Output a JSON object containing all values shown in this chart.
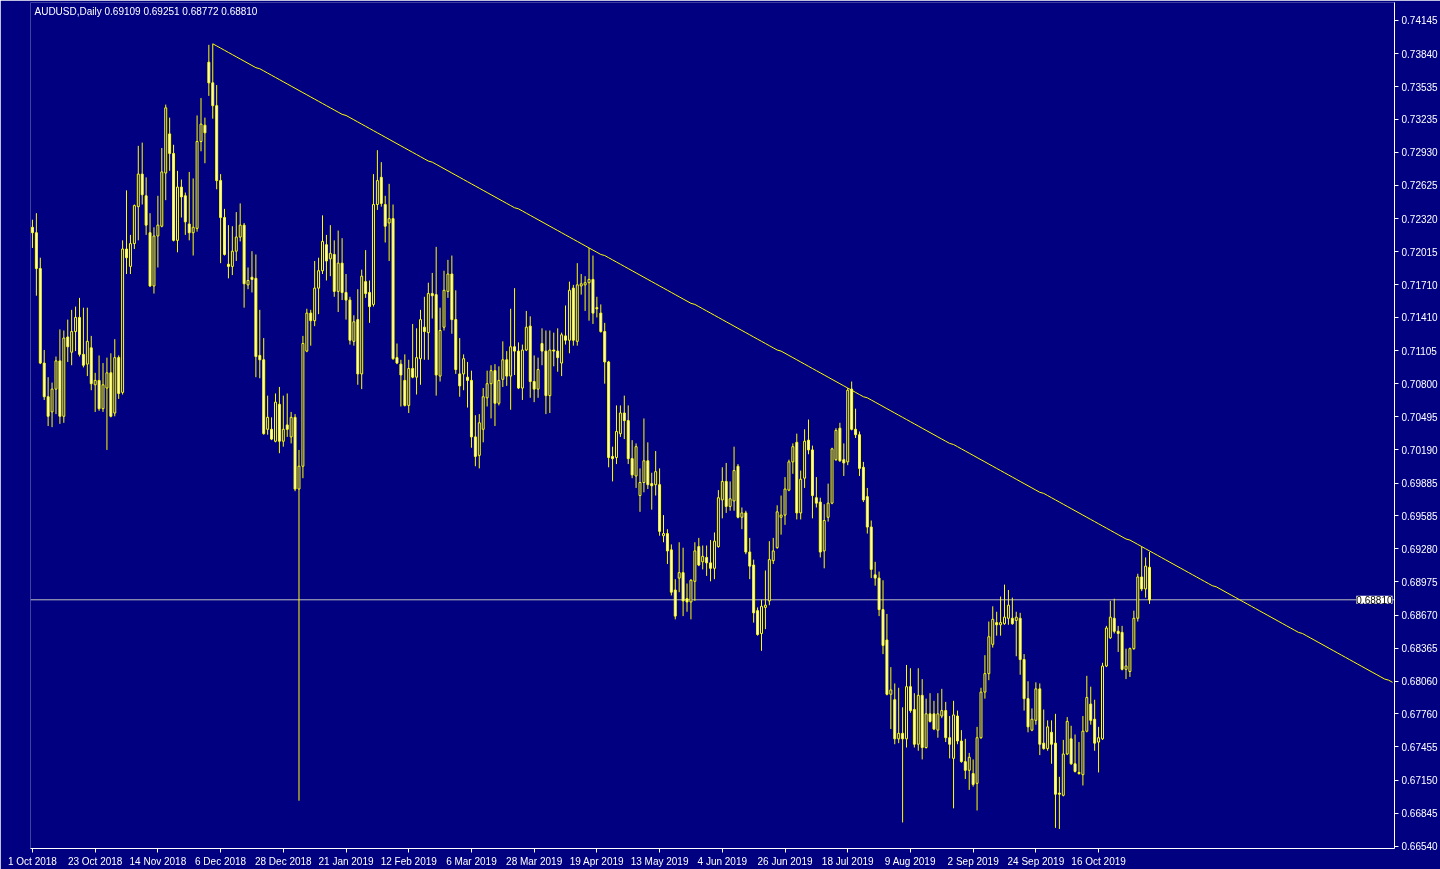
{
  "chart_data": {
    "type": "candlestick",
    "title": "AUDUSD,Daily 0.69109 0.69251 0.68772 0.68810",
    "color": "#ffff00",
    "categories": [
      "1 Oct 2018",
      null,
      null,
      null,
      null,
      null,
      null,
      null,
      null,
      null,
      null,
      null,
      null,
      null,
      null,
      null,
      "23 Oct 2018",
      null,
      null,
      null,
      null,
      null,
      null,
      null,
      null,
      null,
      null,
      null,
      null,
      null,
      null,
      null,
      "14 Nov 2018",
      null,
      null,
      null,
      null,
      null,
      null,
      null,
      null,
      null,
      null,
      null,
      null,
      null,
      null,
      null,
      "6 Dec 2018",
      null,
      null,
      null,
      null,
      null,
      null,
      null,
      null,
      null,
      null,
      null,
      null,
      null,
      null,
      null,
      "28 Dec 2018",
      null,
      null,
      null,
      null,
      null,
      null,
      null,
      null,
      null,
      null,
      null,
      null,
      null,
      null,
      null,
      "21 Jan 2019",
      null,
      null,
      null,
      null,
      null,
      null,
      null,
      null,
      null,
      null,
      null,
      null,
      null,
      null,
      null,
      "12 Feb 2019",
      null,
      null,
      null,
      null,
      null,
      null,
      null,
      null,
      null,
      null,
      null,
      null,
      null,
      null,
      null,
      "6 Mar 2019",
      null,
      null,
      null,
      null,
      null,
      null,
      null,
      null,
      null,
      null,
      null,
      null,
      null,
      null,
      null,
      "28 Mar 2019",
      null,
      null,
      null,
      null,
      null,
      null,
      null,
      null,
      null,
      null,
      null,
      null,
      null,
      null,
      null,
      "19 Apr 2019",
      null,
      null,
      null,
      null,
      null,
      null,
      null,
      null,
      null,
      null,
      null,
      null,
      null,
      null,
      null,
      "13 May 2019",
      null,
      null,
      null,
      null,
      null,
      null,
      null,
      null,
      null,
      null,
      null,
      null,
      null,
      null,
      null,
      "4 Jun 2019",
      null,
      null,
      null,
      null,
      null,
      null,
      null,
      null,
      null,
      null,
      null,
      null,
      null,
      null,
      null,
      "26 Jun 2019",
      null,
      null,
      null,
      null,
      null,
      null,
      null,
      null,
      null,
      null,
      null,
      null,
      null,
      null,
      null,
      "18 Jul 2019",
      null,
      null,
      null,
      null,
      null,
      null,
      null,
      null,
      null,
      null,
      null,
      null,
      null,
      null,
      null,
      "9 Aug 2019",
      null,
      null,
      null,
      null,
      null,
      null,
      null,
      null,
      null,
      null,
      null,
      null,
      null,
      null,
      null,
      "2 Sep 2019",
      null,
      null,
      null,
      null,
      null,
      null,
      null,
      null,
      null,
      null,
      null,
      null,
      null,
      null,
      null,
      "24 Sep 2019",
      null,
      null,
      null,
      null,
      null,
      null,
      null,
      null,
      null,
      null,
      null,
      null,
      null,
      null,
      null,
      "16 Oct 2019",
      null,
      null,
      null,
      null,
      null,
      null,
      null,
      null,
      null,
      null,
      null,
      null,
      null,
      null,
      null,
      null,
      null,
      null,
      null,
      null,
      null,
      null,
      null,
      null,
      null,
      null,
      null,
      null,
      null,
      null,
      null,
      null,
      null,
      null,
      null,
      null,
      null,
      null,
      null,
      null,
      null,
      null,
      null,
      null,
      null,
      null,
      null,
      null,
      null,
      null,
      null,
      null,
      null,
      null,
      null,
      null,
      null,
      null,
      null,
      null,
      null,
      null,
      null,
      null,
      null,
      null,
      null,
      null,
      null,
      null,
      null,
      null,
      null,
      null,
      null
    ],
    "ohlc": [
      [
        0.7224,
        0.7231,
        0.7205,
        0.7219
      ],
      [
        0.7219,
        0.7237,
        0.7161,
        0.7186
      ],
      [
        0.7186,
        0.7196,
        0.7098,
        0.7099
      ],
      [
        0.7099,
        0.7111,
        0.7065,
        0.7068
      ],
      [
        0.7068,
        0.7086,
        0.7041,
        0.705
      ],
      [
        0.7054,
        0.7081,
        0.704,
        0.7075
      ],
      [
        0.7075,
        0.7105,
        0.7052,
        0.7101
      ],
      [
        0.7101,
        0.713,
        0.7043,
        0.705
      ],
      [
        0.705,
        0.7129,
        0.7044,
        0.7122
      ],
      [
        0.7123,
        0.7139,
        0.71,
        0.7114
      ],
      [
        0.7109,
        0.7148,
        0.7097,
        0.7128
      ],
      [
        0.7128,
        0.7151,
        0.711,
        0.7141
      ],
      [
        0.7141,
        0.7159,
        0.7105,
        0.7107
      ],
      [
        0.7107,
        0.715,
        0.7095,
        0.7097
      ],
      [
        0.7098,
        0.715,
        0.7087,
        0.7119
      ],
      [
        0.7113,
        0.7124,
        0.7074,
        0.708
      ],
      [
        0.7079,
        0.709,
        0.7054,
        0.7083
      ],
      [
        0.7083,
        0.7106,
        0.7055,
        0.7057
      ],
      [
        0.7057,
        0.7099,
        0.7054,
        0.7079
      ],
      [
        0.7076,
        0.7104,
        0.7019,
        0.709
      ],
      [
        0.709,
        0.7108,
        0.7049,
        0.705
      ],
      [
        0.7053,
        0.7121,
        0.705,
        0.7104
      ],
      [
        0.7104,
        0.7106,
        0.7066,
        0.7071
      ],
      [
        0.7072,
        0.7212,
        0.707,
        0.7204
      ],
      [
        0.7204,
        0.7258,
        0.7181,
        0.7196
      ],
      [
        0.7188,
        0.7217,
        0.7181,
        0.7209
      ],
      [
        0.7209,
        0.7245,
        0.7204,
        0.7244
      ],
      [
        0.7243,
        0.7299,
        0.7212,
        0.7273
      ],
      [
        0.7273,
        0.7302,
        0.7245,
        0.7254
      ],
      [
        0.7253,
        0.727,
        0.7217,
        0.7226
      ],
      [
        0.7219,
        0.7237,
        0.7169,
        0.717
      ],
      [
        0.717,
        0.7224,
        0.7163,
        0.7216
      ],
      [
        0.7216,
        0.7253,
        0.7187,
        0.7226
      ],
      [
        0.7225,
        0.7297,
        0.7224,
        0.7275
      ],
      [
        0.7274,
        0.7337,
        0.7249,
        0.7334
      ],
      [
        0.731,
        0.7325,
        0.7276,
        0.7292
      ],
      [
        0.7292,
        0.73,
        0.7211,
        0.7212
      ],
      [
        0.7212,
        0.7276,
        0.7201,
        0.7261
      ],
      [
        0.7261,
        0.7268,
        0.7233,
        0.7252
      ],
      [
        0.7253,
        0.7256,
        0.7217,
        0.7229
      ],
      [
        0.7227,
        0.7275,
        0.7212,
        0.7219
      ],
      [
        0.7219,
        0.7269,
        0.7198,
        0.7224
      ],
      [
        0.7223,
        0.7327,
        0.722,
        0.7303
      ],
      [
        0.7303,
        0.7343,
        0.7294,
        0.7319
      ],
      [
        0.7318,
        0.7325,
        0.7283,
        0.7311
      ],
      [
        0.7376,
        0.7392,
        0.7345,
        0.7357
      ],
      [
        0.7357,
        0.7393,
        0.7324,
        0.7336
      ],
      [
        0.7336,
        0.7355,
        0.7259,
        0.7267
      ],
      [
        0.7267,
        0.7273,
        0.7191,
        0.7233
      ],
      [
        0.7233,
        0.7241,
        0.7198,
        0.7199
      ],
      [
        0.719,
        0.7226,
        0.7177,
        0.7188
      ],
      [
        0.7188,
        0.7225,
        0.718,
        0.7202
      ],
      [
        0.7202,
        0.7238,
        0.7193,
        0.7215
      ],
      [
        0.7215,
        0.7246,
        0.7211,
        0.7226
      ],
      [
        0.7226,
        0.7228,
        0.715,
        0.7172
      ],
      [
        0.7171,
        0.7187,
        0.7167,
        0.7175
      ],
      [
        0.7178,
        0.7202,
        0.7164,
        0.7176
      ],
      [
        0.7177,
        0.7199,
        0.7086,
        0.7105
      ],
      [
        0.7106,
        0.7148,
        0.7085,
        0.7102
      ],
      [
        0.7102,
        0.7122,
        0.7033,
        0.7034
      ],
      [
        0.7038,
        0.7069,
        0.7033,
        0.7049
      ],
      [
        0.7038,
        0.7049,
        0.7028,
        0.7029
      ],
      [
        0.7027,
        0.7071,
        0.7026,
        0.7063
      ],
      [
        0.7061,
        0.7077,
        0.7016,
        0.7027
      ],
      [
        0.7027,
        0.7069,
        0.7022,
        0.7038
      ],
      [
        0.7042,
        0.7071,
        0.7031,
        0.7038
      ],
      [
        0.7031,
        0.7054,
        0.7025,
        0.7049
      ],
      [
        0.7049,
        0.7052,
        0.6981,
        0.6983
      ],
      [
        0.6983,
        0.7019,
        0.6696,
        0.7004
      ],
      [
        0.7004,
        0.7124,
        0.6993,
        0.7117
      ],
      [
        0.711,
        0.7149,
        0.7109,
        0.7145
      ],
      [
        0.7145,
        0.7148,
        0.7115,
        0.7138
      ],
      [
        0.7138,
        0.7193,
        0.7133,
        0.7168
      ],
      [
        0.7168,
        0.7196,
        0.7144,
        0.7184
      ],
      [
        0.7184,
        0.7235,
        0.7181,
        0.7211
      ],
      [
        0.7208,
        0.7217,
        0.7175,
        0.7193
      ],
      [
        0.7195,
        0.7226,
        0.7179,
        0.72
      ],
      [
        0.7199,
        0.7212,
        0.716,
        0.7165
      ],
      [
        0.7165,
        0.7221,
        0.7146,
        0.7191
      ],
      [
        0.7191,
        0.7214,
        0.7157,
        0.7164
      ],
      [
        0.7164,
        0.7181,
        0.7139,
        0.7157
      ],
      [
        0.7157,
        0.716,
        0.7116,
        0.712
      ],
      [
        0.7119,
        0.7143,
        0.7115,
        0.7137
      ],
      [
        0.7139,
        0.7167,
        0.7079,
        0.7089
      ],
      [
        0.7089,
        0.7185,
        0.7075,
        0.7179
      ],
      [
        0.7174,
        0.7203,
        0.7159,
        0.7163
      ],
      [
        0.7164,
        0.7175,
        0.7136,
        0.7151
      ],
      [
        0.7153,
        0.7273,
        0.7151,
        0.7245
      ],
      [
        0.7245,
        0.7295,
        0.724,
        0.7267
      ],
      [
        0.727,
        0.7284,
        0.7243,
        0.7246
      ],
      [
        0.7245,
        0.7253,
        0.721,
        0.7225
      ],
      [
        0.7228,
        0.7264,
        0.7193,
        0.7232
      ],
      [
        0.7232,
        0.7245,
        0.7102,
        0.7103
      ],
      [
        0.7104,
        0.7117,
        0.7098,
        0.7099
      ],
      [
        0.7098,
        0.7102,
        0.7059,
        0.7088
      ],
      [
        0.7083,
        0.7107,
        0.7059,
        0.706
      ],
      [
        0.706,
        0.7102,
        0.7053,
        0.7094
      ],
      [
        0.7094,
        0.7135,
        0.7085,
        0.7086
      ],
      [
        0.7086,
        0.7131,
        0.707,
        0.7104
      ],
      [
        0.7103,
        0.7148,
        0.7079,
        0.7139
      ],
      [
        0.7132,
        0.716,
        0.7102,
        0.7128
      ],
      [
        0.7127,
        0.7173,
        0.7102,
        0.7163
      ],
      [
        0.7163,
        0.7182,
        0.714,
        0.7161
      ],
      [
        0.7162,
        0.7206,
        0.7069,
        0.7088
      ],
      [
        0.7087,
        0.715,
        0.7082,
        0.7129
      ],
      [
        0.7132,
        0.7184,
        0.7129,
        0.7166
      ],
      [
        0.7165,
        0.7194,
        0.7159,
        0.7181
      ],
      [
        0.7181,
        0.7198,
        0.7126,
        0.7139
      ],
      [
        0.7139,
        0.7166,
        0.7089,
        0.7093
      ],
      [
        0.7089,
        0.7122,
        0.7068,
        0.7078
      ],
      [
        0.7089,
        0.7107,
        0.7074,
        0.7103
      ],
      [
        0.7086,
        0.71,
        0.7058,
        0.7083
      ],
      [
        0.7083,
        0.7092,
        0.7021,
        0.7031
      ],
      [
        0.7031,
        0.7051,
        0.7004,
        0.7013
      ],
      [
        0.7014,
        0.7052,
        0.7002,
        0.7044
      ],
      [
        0.7038,
        0.7076,
        0.7026,
        0.7068
      ],
      [
        0.7067,
        0.7092,
        0.7059,
        0.708
      ],
      [
        0.708,
        0.7097,
        0.7048,
        0.7092
      ],
      [
        0.7092,
        0.7098,
        0.7041,
        0.7062
      ],
      [
        0.7062,
        0.7096,
        0.706,
        0.7083
      ],
      [
        0.7084,
        0.7119,
        0.7077,
        0.7102
      ],
      [
        0.7102,
        0.711,
        0.7078,
        0.7087
      ],
      [
        0.7087,
        0.7149,
        0.7056,
        0.7114
      ],
      [
        0.7114,
        0.7168,
        0.7088,
        0.711
      ],
      [
        0.711,
        0.7118,
        0.7075,
        0.7076
      ],
      [
        0.7076,
        0.7116,
        0.7065,
        0.7111
      ],
      [
        0.7111,
        0.7147,
        0.711,
        0.7132
      ],
      [
        0.7133,
        0.7142,
        0.7067,
        0.7082
      ],
      [
        0.7082,
        0.7106,
        0.7063,
        0.7075
      ],
      [
        0.7075,
        0.7104,
        0.7067,
        0.7093
      ],
      [
        0.7117,
        0.7131,
        0.7097,
        0.711
      ],
      [
        0.711,
        0.7129,
        0.7052,
        0.7069
      ],
      [
        0.7069,
        0.7129,
        0.7053,
        0.7111
      ],
      [
        0.7111,
        0.7127,
        0.7096,
        0.711
      ],
      [
        0.711,
        0.7131,
        0.7091,
        0.7104
      ],
      [
        0.7099,
        0.7127,
        0.7087,
        0.7125
      ],
      [
        0.7124,
        0.7152,
        0.7116,
        0.712
      ],
      [
        0.712,
        0.7174,
        0.7108,
        0.7166
      ],
      [
        0.7168,
        0.7171,
        0.7115,
        0.712
      ],
      [
        0.7119,
        0.7191,
        0.7115,
        0.7171
      ],
      [
        0.717,
        0.7181,
        0.7162,
        0.7172
      ],
      [
        0.7171,
        0.7179,
        0.7147,
        0.7173
      ],
      [
        0.7173,
        0.7205,
        0.7138,
        0.7176
      ],
      [
        0.7176,
        0.7198,
        0.7135,
        0.7145
      ],
      [
        0.715,
        0.716,
        0.7141,
        0.7149
      ],
      [
        0.7145,
        0.7153,
        0.7127,
        0.7128
      ],
      [
        0.7128,
        0.7136,
        0.708,
        0.71
      ],
      [
        0.71,
        0.7101,
        0.7003,
        0.7012
      ],
      [
        0.7013,
        0.7022,
        0.699,
        0.7011
      ],
      [
        0.7012,
        0.706,
        0.7006,
        0.7036
      ],
      [
        0.7034,
        0.706,
        0.7031,
        0.7053
      ],
      [
        0.7053,
        0.7069,
        0.7029,
        0.7046
      ],
      [
        0.7046,
        0.706,
        0.7006,
        0.7011
      ],
      [
        0.7011,
        0.7028,
        0.6993,
        0.6996
      ],
      [
        0.6995,
        0.7025,
        0.6984,
        0.7022
      ],
      [
        0.6977,
        0.7002,
        0.6962,
        0.6989
      ],
      [
        0.6989,
        0.7048,
        0.698,
        0.7009
      ],
      [
        0.7009,
        0.7026,
        0.6983,
        0.6987
      ],
      [
        0.6988,
        0.6998,
        0.6964,
        0.6986
      ],
      [
        0.6987,
        0.7018,
        0.6977,
        0.6999
      ],
      [
        0.6987,
        0.7002,
        0.694,
        0.6944
      ],
      [
        0.694,
        0.6959,
        0.6934,
        0.6942
      ],
      [
        0.6942,
        0.6946,
        0.6914,
        0.6926
      ],
      [
        0.6927,
        0.6932,
        0.6885,
        0.6888
      ],
      [
        0.689,
        0.69,
        0.6863,
        0.6866
      ],
      [
        0.6901,
        0.6934,
        0.6888,
        0.6906
      ],
      [
        0.6906,
        0.6929,
        0.6866,
        0.688
      ],
      [
        0.6882,
        0.6896,
        0.687,
        0.6879
      ],
      [
        0.6879,
        0.69,
        0.6863,
        0.6899
      ],
      [
        0.6898,
        0.6934,
        0.688,
        0.6926
      ],
      [
        0.693,
        0.6938,
        0.6912,
        0.6913
      ],
      [
        0.6916,
        0.6931,
        0.6909,
        0.6921
      ],
      [
        0.692,
        0.6931,
        0.6903,
        0.6915
      ],
      [
        0.6915,
        0.6936,
        0.6898,
        0.691
      ],
      [
        0.691,
        0.6943,
        0.69,
        0.6935
      ],
      [
        0.693,
        0.6982,
        0.6929,
        0.6975
      ],
      [
        0.6973,
        0.7003,
        0.6956,
        0.699
      ],
      [
        0.699,
        0.7007,
        0.6961,
        0.6967
      ],
      [
        0.6967,
        0.699,
        0.6963,
        0.6974
      ],
      [
        0.6972,
        0.7022,
        0.6963,
        0.7
      ],
      [
        0.7004,
        0.7006,
        0.6956,
        0.6957
      ],
      [
        0.6957,
        0.6966,
        0.6946,
        0.6961
      ],
      [
        0.6961,
        0.6963,
        0.6923,
        0.6925
      ],
      [
        0.6925,
        0.6938,
        0.69,
        0.6912
      ],
      [
        0.6913,
        0.6918,
        0.686,
        0.6869
      ],
      [
        0.6871,
        0.6874,
        0.6848,
        0.6849
      ],
      [
        0.685,
        0.6881,
        0.6834,
        0.6875
      ],
      [
        0.6874,
        0.6908,
        0.6854,
        0.6876
      ],
      [
        0.688,
        0.6935,
        0.6876,
        0.6918
      ],
      [
        0.6917,
        0.6938,
        0.6914,
        0.6926
      ],
      [
        0.6929,
        0.6968,
        0.6928,
        0.6962
      ],
      [
        0.6957,
        0.6977,
        0.6941,
        0.6959
      ],
      [
        0.6959,
        0.6994,
        0.695,
        0.6983
      ],
      [
        0.6982,
        0.701,
        0.6981,
        0.7008
      ],
      [
        0.7008,
        0.7025,
        0.6997,
        0.7022
      ],
      [
        0.7026,
        0.7034,
        0.6955,
        0.6961
      ],
      [
        0.6961,
        0.7,
        0.6955,
        0.6992
      ],
      [
        0.6993,
        0.7038,
        0.6984,
        0.7027
      ],
      [
        0.7028,
        0.7047,
        0.7015,
        0.7019
      ],
      [
        0.7019,
        0.7023,
        0.6956,
        0.6977
      ],
      [
        0.6975,
        0.6994,
        0.6966,
        0.697
      ],
      [
        0.6971,
        0.6975,
        0.692,
        0.6925
      ],
      [
        0.6926,
        0.6969,
        0.691,
        0.6954
      ],
      [
        0.6957,
        0.6988,
        0.6953,
        0.697
      ],
      [
        0.697,
        0.7021,
        0.6969,
        0.702
      ],
      [
        0.701,
        0.7039,
        0.7009,
        0.7037
      ],
      [
        0.7039,
        0.7044,
        0.7008,
        0.7009
      ],
      [
        0.701,
        0.7025,
        0.6995,
        0.7007
      ],
      [
        0.7008,
        0.7076,
        0.7005,
        0.7074
      ],
      [
        0.7075,
        0.7082,
        0.7037,
        0.7038
      ],
      [
        0.7038,
        0.7057,
        0.703,
        0.7033
      ],
      [
        0.7033,
        0.7036,
        0.6995,
        0.7002
      ],
      [
        0.7003,
        0.7008,
        0.6971,
        0.6973
      ],
      [
        0.6976,
        0.6984,
        0.6942,
        0.6948
      ],
      [
        0.6948,
        0.6954,
        0.6901,
        0.6909
      ],
      [
        0.6904,
        0.6916,
        0.6894,
        0.6901
      ],
      [
        0.6901,
        0.6907,
        0.6866,
        0.6872
      ],
      [
        0.6872,
        0.6899,
        0.6831,
        0.6839
      ],
      [
        0.6844,
        0.6868,
        0.6793,
        0.6794
      ],
      [
        0.6794,
        0.6819,
        0.6762,
        0.6798
      ],
      [
        0.6789,
        0.6804,
        0.6748,
        0.6753
      ],
      [
        0.6753,
        0.68,
        0.6749,
        0.6758
      ],
      [
        0.6758,
        0.6782,
        0.6676,
        0.6753
      ],
      [
        0.6753,
        0.6821,
        0.6745,
        0.6801
      ],
      [
        0.6801,
        0.6818,
        0.6777,
        0.6779
      ],
      [
        0.678,
        0.6795,
        0.6745,
        0.6748
      ],
      [
        0.6748,
        0.6818,
        0.6742,
        0.6793
      ],
      [
        0.6793,
        0.6808,
        0.6734,
        0.6745
      ],
      [
        0.6745,
        0.679,
        0.6744,
        0.6776
      ],
      [
        0.6776,
        0.6795,
        0.6768,
        0.6769
      ],
      [
        0.6776,
        0.6788,
        0.6761,
        0.6762
      ],
      [
        0.6761,
        0.6795,
        0.6754,
        0.6776
      ],
      [
        0.6774,
        0.6799,
        0.6772,
        0.6779
      ],
      [
        0.6779,
        0.6787,
        0.675,
        0.6754
      ],
      [
        0.6754,
        0.6774,
        0.6735,
        0.6748
      ],
      [
        0.6735,
        0.6788,
        0.6689,
        0.6775
      ],
      [
        0.6774,
        0.6779,
        0.6748,
        0.6751
      ],
      [
        0.6751,
        0.6761,
        0.6731,
        0.6732
      ],
      [
        0.6732,
        0.6753,
        0.6716,
        0.6724
      ],
      [
        0.6724,
        0.674,
        0.6706,
        0.6736
      ],
      [
        0.6721,
        0.6734,
        0.6709,
        0.6711
      ],
      [
        0.6712,
        0.6764,
        0.6687,
        0.6754
      ],
      [
        0.6754,
        0.68,
        0.6753,
        0.6796
      ],
      [
        0.6796,
        0.683,
        0.679,
        0.6813
      ],
      [
        0.6813,
        0.6861,
        0.6807,
        0.6847
      ],
      [
        0.684,
        0.6875,
        0.6837,
        0.6863
      ],
      [
        0.686,
        0.687,
        0.6848,
        0.6858
      ],
      [
        0.6858,
        0.6884,
        0.6848,
        0.686
      ],
      [
        0.6859,
        0.6895,
        0.6858,
        0.6865
      ],
      [
        0.6864,
        0.689,
        0.6858,
        0.6876
      ],
      [
        0.6864,
        0.6883,
        0.6858,
        0.6859
      ],
      [
        0.6862,
        0.687,
        0.6829,
        0.6865
      ],
      [
        0.6864,
        0.6869,
        0.6812,
        0.6826
      ],
      [
        0.6826,
        0.6831,
        0.6779,
        0.679
      ],
      [
        0.679,
        0.6806,
        0.6759,
        0.6764
      ],
      [
        0.6761,
        0.6781,
        0.676,
        0.6771
      ],
      [
        0.677,
        0.6805,
        0.6766,
        0.6799
      ],
      [
        0.6799,
        0.6804,
        0.6738,
        0.6748
      ],
      [
        0.6749,
        0.678,
        0.6743,
        0.6744
      ],
      [
        0.6744,
        0.677,
        0.6742,
        0.6764
      ],
      [
        0.6759,
        0.677,
        0.673,
        0.6748
      ],
      [
        0.6749,
        0.6776,
        0.6671,
        0.6702
      ],
      [
        0.6703,
        0.6718,
        0.667,
        0.6702
      ],
      [
        0.6701,
        0.6752,
        0.67,
        0.6739
      ],
      [
        0.6739,
        0.6773,
        0.6738,
        0.6769
      ],
      [
        0.6753,
        0.6765,
        0.6729,
        0.673
      ],
      [
        0.673,
        0.6757,
        0.6722,
        0.6723
      ],
      [
        0.6722,
        0.675,
        0.672,
        0.6721
      ],
      [
        0.672,
        0.6774,
        0.671,
        0.676
      ],
      [
        0.676,
        0.6811,
        0.6759,
        0.6791
      ],
      [
        0.6785,
        0.6801,
        0.6766,
        0.677
      ],
      [
        0.6771,
        0.6789,
        0.6742,
        0.6749
      ],
      [
        0.675,
        0.6764,
        0.6722,
        0.6754
      ],
      [
        0.6753,
        0.6823,
        0.6752,
        0.682
      ],
      [
        0.682,
        0.6857,
        0.6819,
        0.6855
      ],
      [
        0.6846,
        0.688,
        0.6845,
        0.6865
      ],
      [
        0.6864,
        0.6882,
        0.685,
        0.6852
      ],
      [
        0.6852,
        0.6857,
        0.6833,
        0.685
      ],
      [
        0.6851,
        0.6857,
        0.6816,
        0.6817
      ],
      [
        0.6817,
        0.6836,
        0.6808,
        0.682
      ],
      [
        0.6815,
        0.6837,
        0.681,
        0.6836
      ],
      [
        0.6836,
        0.6871,
        0.6835,
        0.6864
      ],
      [
        0.6864,
        0.6905,
        0.6861,
        0.6902
      ],
      [
        0.6902,
        0.693,
        0.6889,
        0.6891
      ],
      [
        0.6891,
        0.692,
        0.6883,
        0.6912
      ],
      [
        0.69109,
        0.69251,
        0.68772,
        0.6881
      ],
      null,
      null,
      null,
      null,
      null,
      null,
      null,
      null,
      null,
      null,
      null,
      null,
      null,
      null,
      null,
      null,
      null,
      null,
      null,
      null,
      null,
      null,
      null,
      null,
      null,
      null,
      null,
      null,
      null,
      null,
      null,
      null,
      null,
      null,
      null,
      null,
      null,
      null,
      null,
      null,
      null,
      null,
      null,
      null,
      null,
      null,
      null,
      null,
      null,
      null,
      null,
      null,
      null,
      null,
      null,
      null,
      null,
      null,
      null,
      null,
      null,
      null
    ],
    "series": [
      {
        "type": "line",
        "color": "#ffff00",
        "values": [
          null,
          null,
          null,
          null,
          null,
          null,
          null,
          null,
          null,
          null,
          null,
          null,
          null,
          null,
          null,
          null,
          null,
          null,
          null,
          null,
          null,
          null,
          null,
          null,
          null,
          null,
          null,
          null,
          null,
          null,
          null,
          null,
          null,
          null,
          null,
          null,
          null,
          null,
          null,
          null,
          null,
          null,
          null,
          null,
          null,
          null,
          0.7393,
          0.7391,
          0.7389,
          0.7387,
          0.7385,
          0.7383,
          0.7381,
          0.7379,
          0.7377,
          0.7375,
          0.7373,
          0.7371,
          0.737,
          0.7368,
          0.7366,
          0.7364,
          0.7362,
          0.736,
          0.7358,
          0.7356,
          0.7354,
          0.7352,
          0.735,
          0.7348,
          0.7346,
          0.7344,
          0.7342,
          0.734,
          0.7338,
          0.7336,
          0.7334,
          0.7332,
          0.733,
          0.7328,
          0.7327,
          0.7325,
          0.7323,
          0.7321,
          0.7319,
          0.7317,
          0.7315,
          0.7313,
          0.7311,
          0.7309,
          0.7307,
          0.7305,
          0.7303,
          0.7301,
          0.7299,
          0.7297,
          0.7295,
          0.7293,
          0.7291,
          0.7289,
          0.7287,
          0.7285,
          0.7284,
          0.7282,
          0.728,
          0.7278,
          0.7276,
          0.7274,
          0.7272,
          0.727,
          0.7268,
          0.7266,
          0.7264,
          0.7262,
          0.726,
          0.7258,
          0.7256,
          0.7254,
          0.7252,
          0.725,
          0.7248,
          0.7246,
          0.7244,
          0.7242,
          0.7241,
          0.7239,
          0.7237,
          0.7235,
          0.7233,
          0.7231,
          0.7229,
          0.7227,
          0.7225,
          0.7223,
          0.7221,
          0.7219,
          0.7217,
          0.7215,
          0.7213,
          0.7211,
          0.7209,
          0.7207,
          0.7205,
          0.7203,
          0.7201,
          0.7199,
          0.7198,
          0.7196,
          0.7194,
          0.7192,
          0.719,
          0.7188,
          0.7186,
          0.7184,
          0.7182,
          0.718,
          0.7178,
          0.7176,
          0.7174,
          0.7172,
          0.717,
          0.7168,
          0.7166,
          0.7164,
          0.7162,
          0.716,
          0.7158,
          0.7156,
          0.7154,
          0.7153,
          0.7151,
          0.7149,
          0.7147,
          0.7145,
          0.7143,
          0.7141,
          0.7139,
          0.7137,
          0.7135,
          0.7133,
          0.7131,
          0.7129,
          0.7127,
          0.7125,
          0.7123,
          0.7121,
          0.7119,
          0.7117,
          0.7115,
          0.7113,
          0.7111,
          0.711,
          0.7108,
          0.7106,
          0.7104,
          0.7102,
          0.71,
          0.7098,
          0.7096,
          0.7094,
          0.7092,
          0.709,
          0.7088,
          0.7086,
          0.7084,
          0.7082,
          0.708,
          0.7078,
          0.7076,
          0.7074,
          0.7072,
          0.707,
          0.7068,
          0.7067,
          0.7065,
          0.7063,
          0.7061,
          0.7059,
          0.7057,
          0.7055,
          0.7053,
          0.7051,
          0.7049,
          0.7047,
          0.7045,
          0.7043,
          0.7041,
          0.7039,
          0.7037,
          0.7035,
          0.7033,
          0.7031,
          0.7029,
          0.7027,
          0.7025,
          0.7024,
          0.7022,
          0.702,
          0.7018,
          0.7016,
          0.7014,
          0.7012,
          0.701,
          0.7008,
          0.7006,
          0.7004,
          0.7002,
          0.7,
          0.6998,
          0.6996,
          0.6994,
          0.6992,
          0.699,
          0.6988,
          0.6986,
          0.6984,
          0.6982,
          0.698,
          0.6979,
          0.6977,
          0.6975,
          0.6973,
          0.6971,
          0.6969,
          0.6967,
          0.6965,
          0.6963,
          0.6961,
          0.6959,
          0.6957,
          0.6955,
          0.6953,
          0.6951,
          0.6949,
          0.6947,
          0.6945,
          0.6943,
          0.6941,
          0.6939,
          0.6937,
          0.6936,
          0.6934,
          0.6932,
          0.693,
          0.6928,
          0.6926,
          0.6924,
          0.6922,
          0.692,
          0.6918,
          0.6916,
          0.6914,
          0.6912,
          0.691,
          0.6908,
          0.6906,
          0.6904,
          0.6902,
          0.69,
          0.6898,
          0.6896,
          0.6894,
          0.6893,
          0.6891,
          0.6889,
          0.6887,
          0.6885,
          0.6883,
          0.6881,
          0.6879,
          0.6877,
          0.6875,
          0.6873,
          0.6871,
          0.6869,
          0.6867,
          0.6865,
          0.6863,
          0.6861,
          0.6859,
          0.6857,
          0.6855,
          0.6853,
          0.6851,
          0.685,
          0.6848,
          0.6846,
          0.6844,
          0.6842,
          0.684,
          0.6838,
          0.6836,
          0.6834,
          0.6832,
          0.683,
          0.6828,
          0.6826,
          0.6824,
          0.6822,
          0.682,
          0.6818,
          0.6816,
          0.6814,
          0.6812,
          0.681,
          0.6808,
          0.6807,
          0.6805
        ]
      }
    ],
    "ylim": [
      0.6652,
      0.7431
    ],
    "yticks": [
      {
        "value": 0.6654,
        "label": "0.66540"
      },
      0.66845,
      {
        "value": 0.6715,
        "label": "0.67150"
      },
      0.67455,
      {
        "value": 0.6776,
        "label": "0.67760"
      },
      {
        "value": 0.6806,
        "label": "0.68060"
      },
      0.68365,
      {
        "value": 0.6867,
        "label": "0.68670"
      },
      0.68975,
      {
        "value": 0.6928,
        "label": "0.69280"
      },
      0.69585,
      0.69885,
      {
        "value": 0.7019,
        "label": "0.70190"
      },
      0.70495,
      {
        "value": 0.708,
        "label": "0.70800"
      },
      0.71105,
      {
        "value": 0.7141,
        "label": "0.71410"
      },
      {
        "value": 0.7171,
        "label": "0.71710"
      },
      0.72015,
      {
        "value": 0.7232,
        "label": "0.72320"
      },
      0.72625,
      {
        "value": 0.7293,
        "label": "0.72930"
      },
      0.73235,
      0.73535,
      {
        "value": 0.7384,
        "label": "0.73840"
      },
      0.74145
    ],
    "ref_lines": [
      {
        "axis": "y",
        "value": 0.6881,
        "label": "0.68810",
        "color": "#c0c0c0"
      }
    ],
    "grid": false
  }
}
